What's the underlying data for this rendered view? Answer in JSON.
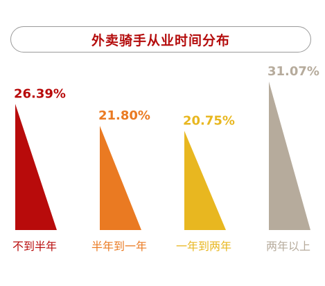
{
  "chart_data": {
    "type": "bar",
    "title": "外卖骑手从业时间分布",
    "categories": [
      "不到半年",
      "半年到一年",
      "一年到两年",
      "两年以上"
    ],
    "values": [
      26.39,
      21.8,
      20.75,
      31.07
    ],
    "value_labels": [
      "26.39%",
      "21.80%",
      "20.75%",
      "31.07%"
    ],
    "colors": [
      "#b80b0b",
      "#ea7a22",
      "#e8b720",
      "#b6ab9c"
    ],
    "ylim": [
      0,
      31.07
    ],
    "grid": false,
    "legend": "none"
  }
}
